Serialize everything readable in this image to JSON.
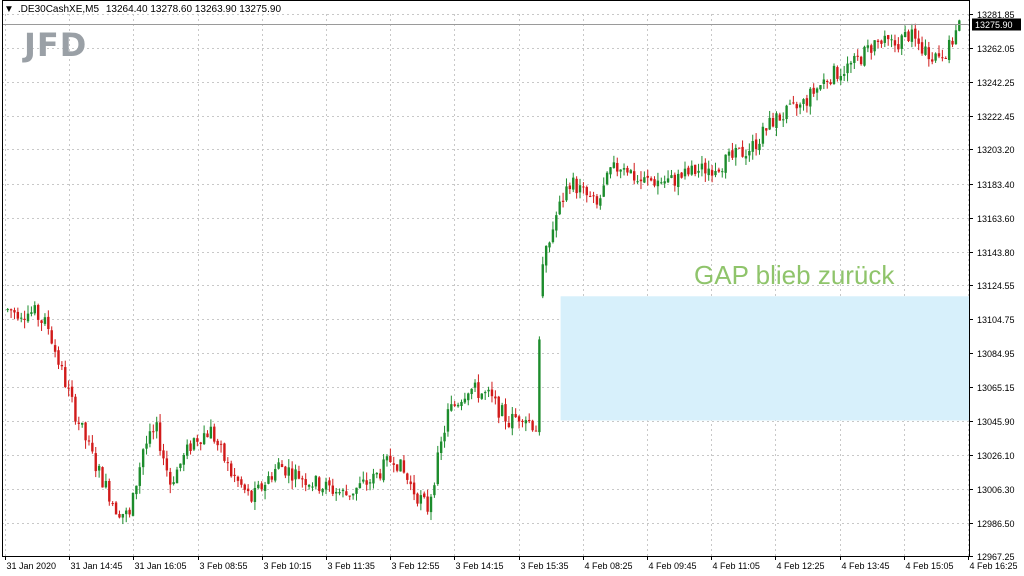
{
  "header": {
    "symbol": ".DE30CashXE,M5",
    "ohlc": "13264.40 13278.60 13263.90 13275.90",
    "dropdown_icon": "triangle-down-icon"
  },
  "logo": {
    "text": "JFD"
  },
  "annotation": {
    "text": "GAP blieb zurück",
    "color": "#8fc46b"
  },
  "current_price": {
    "label": "13275.90"
  },
  "colors": {
    "bull": "#1c8c2c",
    "bear": "#d11a1a",
    "grid": "#c8c8c8",
    "gap": "#d7f0fb"
  },
  "chart_data": {
    "type": "candlestick",
    "xlabels": [
      "31 Jan 2020",
      "31 Jan 14:45",
      "31 Jan 16:05",
      "3 Feb 08:55",
      "3 Feb 10:15",
      "3 Feb 11:35",
      "3 Feb 12:55",
      "3 Feb 14:15",
      "3 Feb 15:35",
      "4 Feb 08:25",
      "4 Feb 09:45",
      "4 Feb 11:05",
      "4 Feb 12:25",
      "4 Feb 13:45",
      "4 Feb 15:05",
      "4 Feb 16:25"
    ],
    "ylabels": [
      "13281.85",
      "13262.05",
      "13242.25",
      "13222.45",
      "13203.20",
      "13183.40",
      "13163.60",
      "13143.80",
      "13124.55",
      "13104.75",
      "13084.95",
      "13065.15",
      "13045.90",
      "13026.10",
      "13006.30",
      "12986.50",
      "12967.25"
    ],
    "ylim": [
      12967.25,
      13281.85
    ],
    "gap_zone": {
      "from": 13045.9,
      "to": 13118.0
    },
    "current": 13275.9,
    "anchors": [
      [
        0,
        13110
      ],
      [
        8,
        13108
      ],
      [
        12,
        13100
      ],
      [
        15,
        13080
      ],
      [
        20,
        13050
      ],
      [
        26,
        13020
      ],
      [
        32,
        12995
      ],
      [
        36,
        12990
      ],
      [
        40,
        13030
      ],
      [
        44,
        13040
      ],
      [
        48,
        13010
      ],
      [
        55,
        13035
      ],
      [
        60,
        13040
      ],
      [
        66,
        13015
      ],
      [
        72,
        13000
      ],
      [
        80,
        13020
      ],
      [
        90,
        13010
      ],
      [
        100,
        13003
      ],
      [
        108,
        13012
      ],
      [
        114,
        13025
      ],
      [
        120,
        13005
      ],
      [
        124,
        12995
      ],
      [
        130,
        13050
      ],
      [
        136,
        13065
      ],
      [
        142,
        13060
      ],
      [
        148,
        13045
      ],
      [
        152,
        13050
      ],
      [
        156,
        13042
      ],
      [
        158,
        13135
      ],
      [
        162,
        13165
      ],
      [
        166,
        13185
      ],
      [
        170,
        13178
      ],
      [
        174,
        13170
      ],
      [
        178,
        13190
      ],
      [
        182,
        13195
      ],
      [
        186,
        13185
      ],
      [
        196,
        13185
      ],
      [
        202,
        13190
      ],
      [
        208,
        13193
      ],
      [
        214,
        13198
      ],
      [
        220,
        13205
      ],
      [
        226,
        13220
      ],
      [
        234,
        13228
      ],
      [
        242,
        13245
      ],
      [
        250,
        13253
      ],
      [
        256,
        13265
      ],
      [
        262,
        13264
      ],
      [
        266,
        13270
      ],
      [
        270,
        13262
      ],
      [
        274,
        13258
      ],
      [
        278,
        13262
      ],
      [
        281,
        13276
      ]
    ]
  }
}
